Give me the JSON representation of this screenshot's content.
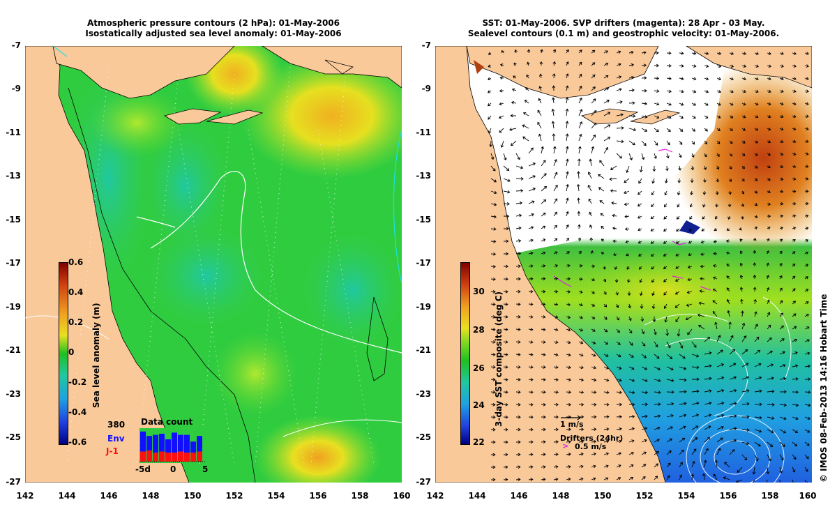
{
  "left_panel": {
    "title_line1": "Atmospheric pressure contours (2 hPa): 01-May-2006",
    "title_line2": "Isostatically adjusted sea level anomaly: 01-May-2006",
    "colorbar_label": "Sea level anomaly (m)",
    "colorbar_ticks": [
      "0.6",
      "0.4",
      "0.2",
      "0",
      "-0.2",
      "-0.4",
      "-0.6"
    ],
    "data_count": {
      "title": "Data count",
      "total": "380",
      "env_label": "Env",
      "j1_label": "J-1",
      "axis_ticks": [
        "-5d",
        "0",
        "5"
      ],
      "env_values": [
        18,
        13,
        16,
        16,
        12,
        18,
        15,
        16,
        10,
        14
      ],
      "j1_values": [
        9,
        10,
        8,
        9,
        8,
        8,
        9,
        8,
        8,
        9
      ]
    }
  },
  "right_panel": {
    "title_line1": "SST: 01-May-2006. SVP drifters (magenta): 28 Apr - 03 May.",
    "title_line2": "Sealevel contours (0.1 m) and geostrophic velocity: 01-May-2006.",
    "colorbar_label": "3-day SST composite (deg C)",
    "colorbar_ticks": [
      "30",
      "28",
      "26",
      "24",
      "22"
    ],
    "velocity_scale_label": "1 m/s",
    "drifters_label": "Drifters (24hr)",
    "drifters_scale_label": "0.5 m/s"
  },
  "axes": {
    "lat_ticks": [
      "-7",
      "-9",
      "-11",
      "-13",
      "-15",
      "-17",
      "-19",
      "-21",
      "-23",
      "-25",
      "-27"
    ],
    "lon_ticks": [
      "142",
      "144",
      "146",
      "148",
      "150",
      "152",
      "154",
      "156",
      "158",
      "160"
    ]
  },
  "copyright": "© IMOS 08-Feb-2013 14:16 Hobart Time",
  "colors": {
    "land": "#f9c99a",
    "ocean_green": "#3cd23c",
    "drifter": "#e020e0",
    "cloud": "#ffffff"
  }
}
